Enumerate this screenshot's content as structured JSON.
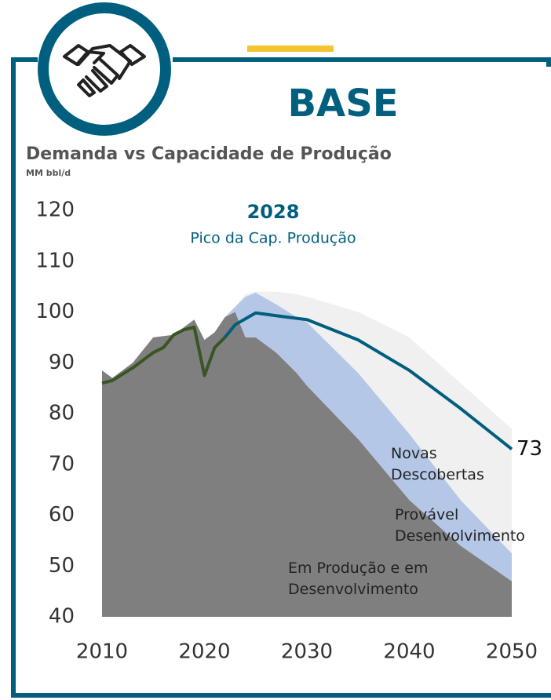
{
  "header": {
    "badge": "BASE"
  },
  "chart_data": {
    "type": "area",
    "title": "Demanda vs Capacidade de Produção",
    "subtitle": "MM bbl/d",
    "annotation": {
      "title": "2028",
      "text": "Pico da Cap. Produção"
    },
    "x": [
      2010,
      2011,
      2013,
      2015,
      2017,
      2019,
      2020,
      2021,
      2022,
      2023,
      2024,
      2025,
      2027,
      2029,
      2030,
      2035,
      2040,
      2045,
      2050
    ],
    "series": [
      {
        "name": "Em Produção e em Desenvolvimento",
        "color": "#7f7f7f",
        "values": [
          88.5,
          87,
          90,
          95,
          95.5,
          98.5,
          94.5,
          96,
          99,
          100,
          95,
          95,
          92,
          88,
          85.5,
          75,
          63,
          54,
          47
        ]
      },
      {
        "name": "Provável Desenvolvimento",
        "color": "#b4c7e7",
        "values": [
          0,
          0,
          0,
          0,
          0,
          0,
          0,
          0,
          0,
          1,
          8,
          8.8,
          9.5,
          11,
          12.5,
          13,
          13,
          9,
          5.5
        ]
      },
      {
        "name": "Novas Descobertas",
        "color": "#f0f0f0",
        "values": [
          0,
          0,
          0,
          0,
          0,
          0,
          0,
          0,
          0,
          0,
          0.5,
          0.2,
          2.5,
          4.5,
          5,
          12,
          19,
          23,
          24.5
        ]
      }
    ],
    "lines": [
      {
        "color": "#375623",
        "x": [
          2010,
          2011,
          2013,
          2015,
          2016,
          2017,
          2018,
          2019,
          2020,
          2021,
          2022
        ],
        "values": [
          86,
          86.5,
          89,
          92,
          93,
          95.5,
          96.5,
          97,
          87.5,
          93,
          95
        ]
      },
      {
        "color": "#005f7f",
        "x": [
          2022,
          2023,
          2025,
          2028,
          2030,
          2035,
          2040,
          2045,
          2050
        ],
        "values": [
          95,
          97.5,
          99.8,
          99,
          98.5,
          94.5,
          88.5,
          81,
          73
        ]
      }
    ],
    "xlim": [
      2010,
      2050
    ],
    "xticks": [
      2010,
      2020,
      2030,
      2040,
      2050
    ],
    "ylim": [
      40,
      120
    ],
    "yticks": [
      40,
      50,
      60,
      70,
      80,
      90,
      100,
      110,
      120
    ]
  }
}
